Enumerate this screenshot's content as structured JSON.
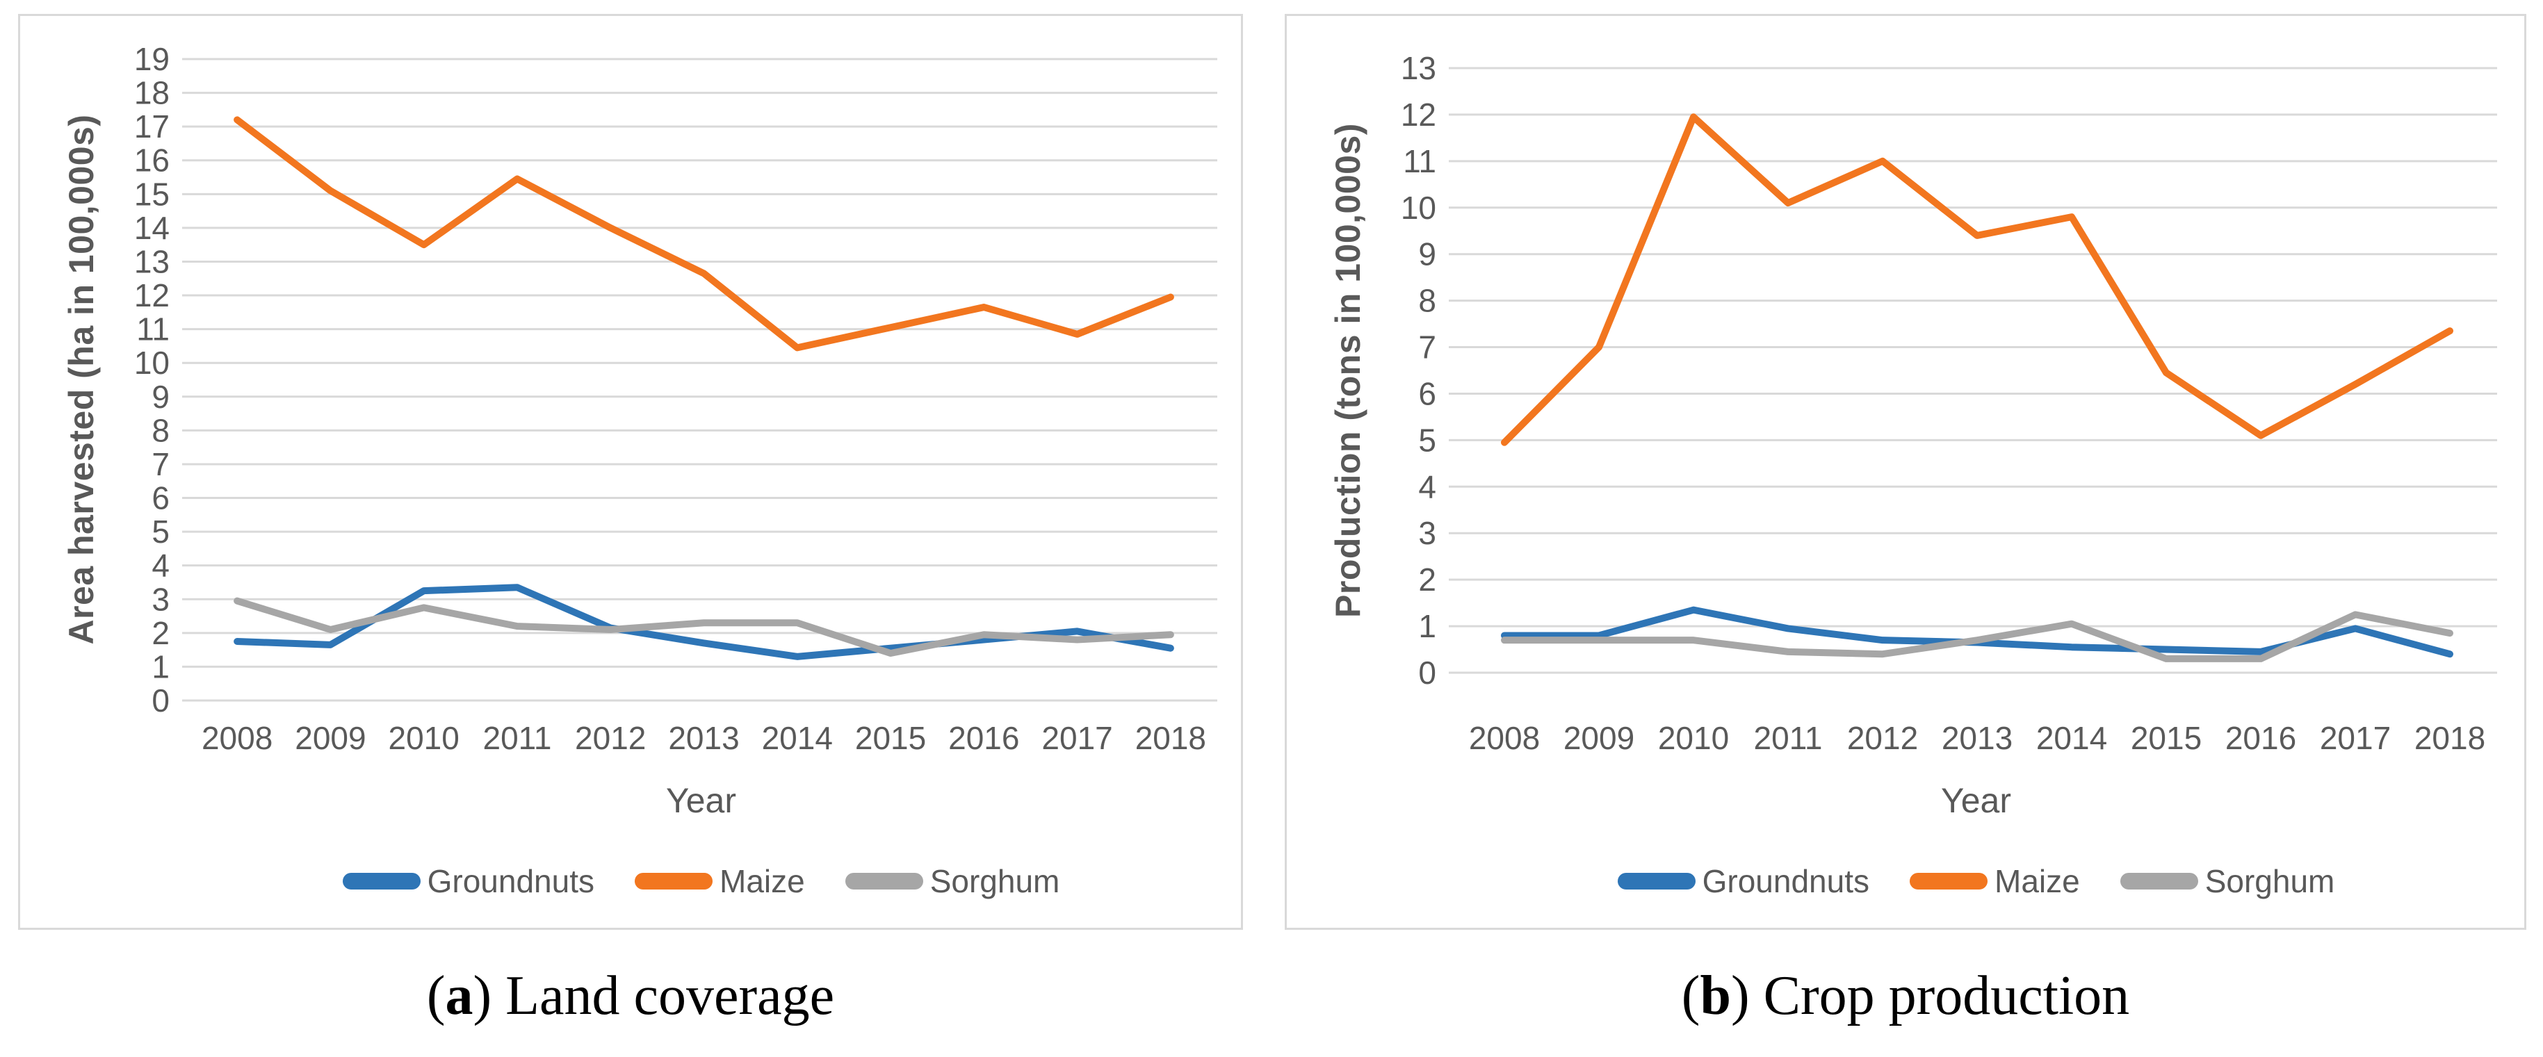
{
  "captions": [
    {
      "open": "(",
      "letter": "a",
      "close": ")",
      "text": "Land coverage"
    },
    {
      "open": "(",
      "letter": "b",
      "close": ")",
      "text": "Crop production"
    }
  ],
  "colors": {
    "groundnuts": "#2E75B6",
    "maize": "#F2761F",
    "sorghum": "#A6A6A6",
    "gridline": "#D9D9D9",
    "tick_text": "#595959",
    "panel_border": "#D9D9D9"
  },
  "chart_data": [
    {
      "type": "line",
      "title": "(a) Land coverage",
      "xlabel": "Year",
      "ylabel": "Area harvested (ha in 100,000s)",
      "ylim": [
        0,
        19
      ],
      "grid": true,
      "legend_position": "bottom",
      "yticks": [
        19,
        18,
        17,
        16,
        15,
        14,
        13,
        12,
        11,
        10,
        9,
        8,
        7,
        6,
        5,
        4,
        3,
        2,
        1,
        0
      ],
      "categories": [
        "2008",
        "2009",
        "2010",
        "2011",
        "2012",
        "2013",
        "2014",
        "2015",
        "2016",
        "2017",
        "2018"
      ],
      "series": [
        {
          "name": "Groundnuts",
          "color": "#2E75B6",
          "values": [
            1.75,
            1.65,
            3.25,
            3.35,
            2.15,
            1.7,
            1.3,
            1.55,
            1.8,
            2.05,
            1.55
          ]
        },
        {
          "name": "Maize",
          "color": "#F2761F",
          "values": [
            17.2,
            15.1,
            13.5,
            15.45,
            14.0,
            12.65,
            10.45,
            11.05,
            11.65,
            10.85,
            11.95
          ]
        },
        {
          "name": "Sorghum",
          "color": "#A6A6A6",
          "values": [
            2.95,
            2.1,
            2.75,
            2.2,
            2.1,
            2.3,
            2.3,
            1.4,
            1.95,
            1.8,
            1.95
          ]
        }
      ]
    },
    {
      "type": "line",
      "title": "(b) Crop production",
      "xlabel": "Year",
      "ylabel": "Production (tons in 100,000s)",
      "ylim": [
        0,
        13
      ],
      "grid": true,
      "legend_position": "bottom",
      "yticks": [
        13,
        12,
        11,
        10,
        9,
        8,
        7,
        6,
        5,
        4,
        3,
        2,
        1,
        0
      ],
      "categories": [
        "2008",
        "2009",
        "2010",
        "2011",
        "2012",
        "2013",
        "2014",
        "2015",
        "2016",
        "2017",
        "2018"
      ],
      "series": [
        {
          "name": "Groundnuts",
          "color": "#2E75B6",
          "values": [
            0.8,
            0.8,
            1.35,
            0.95,
            0.7,
            0.65,
            0.55,
            0.5,
            0.45,
            0.95,
            0.4
          ]
        },
        {
          "name": "Maize",
          "color": "#F2761F",
          "values": [
            4.95,
            7.0,
            11.95,
            10.1,
            11.0,
            9.4,
            9.8,
            6.45,
            5.1,
            6.2,
            7.35
          ]
        },
        {
          "name": "Sorghum",
          "color": "#A6A6A6",
          "values": [
            0.7,
            0.7,
            0.7,
            0.45,
            0.4,
            0.7,
            1.05,
            0.3,
            0.3,
            1.25,
            0.85
          ]
        }
      ]
    }
  ]
}
